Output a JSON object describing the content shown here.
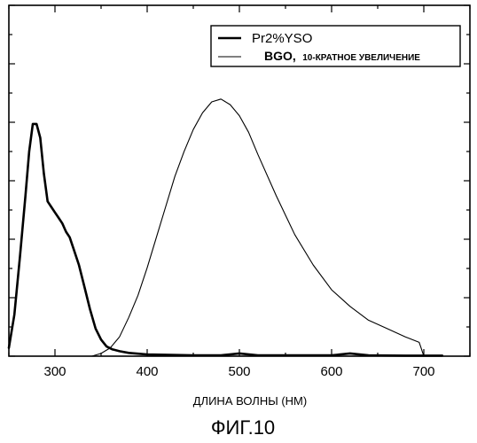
{
  "chart_data": {
    "type": "line",
    "title": "",
    "xlabel": "ДЛИНА ВОЛНЫ (НМ)",
    "ylabel": "",
    "xlim": [
      250,
      750
    ],
    "ylim": [
      0,
      1
    ],
    "x_ticks": [
      300,
      400,
      500,
      600,
      700
    ],
    "y_tick_labels_shown": false,
    "grid": false,
    "legend_position": "top-right",
    "series": [
      {
        "name": "Pr2%YSO",
        "line": "thick",
        "color": "#000000",
        "x": [
          250,
          256,
          262,
          268,
          272,
          276,
          280,
          284,
          288,
          292,
          296,
          300,
          304,
          308,
          312,
          316,
          320,
          326,
          332,
          338,
          344,
          350,
          356,
          362,
          370,
          380,
          400,
          450,
          480,
          500,
          520,
          560,
          600,
          620,
          640,
          680,
          720
        ],
        "y": [
          0.03,
          0.15,
          0.36,
          0.58,
          0.74,
          0.84,
          0.84,
          0.79,
          0.66,
          0.56,
          0.54,
          0.52,
          0.5,
          0.48,
          0.45,
          0.43,
          0.39,
          0.33,
          0.25,
          0.17,
          0.1,
          0.06,
          0.035,
          0.025,
          0.018,
          0.012,
          0.006,
          0.003,
          0.003,
          0.01,
          0.003,
          0.003,
          0.003,
          0.01,
          0.003,
          0.002,
          0.002
        ]
      },
      {
        "name": "BGO, 10-КРАТНОЕ УВЕЛИЧЕНИЕ",
        "line": "thin",
        "color": "#000000",
        "x": [
          340,
          350,
          360,
          370,
          380,
          390,
          400,
          410,
          420,
          430,
          440,
          450,
          460,
          470,
          480,
          490,
          500,
          510,
          520,
          540,
          560,
          580,
          600,
          620,
          640,
          660,
          680,
          695,
          697,
          700
        ],
        "y": [
          0.0,
          0.01,
          0.03,
          0.07,
          0.14,
          0.22,
          0.32,
          0.43,
          0.54,
          0.65,
          0.74,
          0.82,
          0.88,
          0.92,
          0.93,
          0.91,
          0.87,
          0.81,
          0.73,
          0.58,
          0.44,
          0.33,
          0.24,
          0.18,
          0.13,
          0.1,
          0.07,
          0.05,
          0.03,
          0.0
        ]
      }
    ]
  },
  "legend": {
    "series_a": "Pr2%YSO",
    "series_b_main": "BGO,",
    "series_b_note": "10-КРАТНОЕ УВЕЛИЧЕНИЕ"
  },
  "figure_caption": "ФИГ.10"
}
